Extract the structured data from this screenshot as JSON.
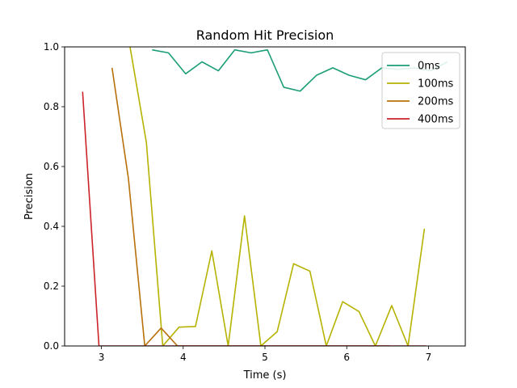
{
  "chart_data": {
    "type": "line",
    "title": "Random Hit Precision",
    "xlabel": "Time (s)",
    "ylabel": "Precision",
    "xlim": [
      2.55,
      7.45
    ],
    "ylim": [
      0,
      1
    ],
    "xticks": [
      3,
      4,
      5,
      6,
      7
    ],
    "yticks": [
      0.0,
      0.2,
      0.4,
      0.6,
      0.8,
      1.0
    ],
    "xtick_labels": [
      "3",
      "4",
      "5",
      "6",
      "7"
    ],
    "ytick_labels": [
      "0.0",
      "0.2",
      "0.4",
      "0.6",
      "0.8",
      "1.0"
    ],
    "grid": false,
    "legend_position": "top-right",
    "series": [
      {
        "name": "0ms",
        "color": "#1b9e77",
        "x": [
          3.62,
          3.82,
          4.03,
          4.23,
          4.43,
          4.63,
          4.83,
          5.03,
          5.23,
          5.43,
          5.63,
          5.83,
          6.03,
          6.23,
          6.43,
          6.63,
          6.83,
          7.03,
          7.23
        ],
        "y": [
          0.99,
          0.98,
          0.91,
          0.95,
          0.92,
          0.99,
          0.98,
          0.99,
          0.865,
          0.852,
          0.905,
          0.93,
          0.905,
          0.89,
          0.93,
          0.925,
          0.93,
          0.92,
          0.95
        ]
      },
      {
        "name": "100ms",
        "color": "#b5b300",
        "x": [
          3.35,
          3.55,
          3.75,
          3.95,
          4.15,
          4.35,
          4.55,
          4.75,
          4.95,
          5.15,
          5.35,
          5.55,
          5.75,
          5.95,
          6.15,
          6.35,
          6.55,
          6.75,
          6.95
        ],
        "y": [
          1.0,
          0.68,
          0.0,
          0.063,
          0.065,
          0.318,
          0.0,
          0.435,
          0.0,
          0.048,
          0.275,
          0.25,
          0.0,
          0.148,
          0.115,
          0.0,
          0.135,
          0.0,
          0.392
        ]
      },
      {
        "name": "200ms",
        "color": "#b8700a",
        "x": [
          3.13,
          3.33,
          3.53,
          3.73,
          3.93,
          4.13,
          4.33,
          4.53,
          4.73,
          4.93,
          5.13,
          5.33,
          5.53,
          5.73,
          5.93,
          6.13,
          6.33,
          6.53
        ],
        "y": [
          0.93,
          0.56,
          0.0,
          0.06,
          0.0,
          0.0,
          0.0,
          0.0,
          0.0,
          0.0,
          0.0,
          0.0,
          0.0,
          0.0,
          0.0,
          0.0,
          0.0,
          0.0
        ]
      },
      {
        "name": "400ms",
        "color": "#cc2229",
        "x": [
          2.77,
          2.97,
          3.17,
          3.37,
          3.57,
          3.77,
          3.97,
          4.17,
          4.37,
          4.57,
          4.77,
          4.97,
          5.17,
          5.37,
          5.57,
          5.77,
          5.97,
          6.17,
          6.37,
          6.57,
          6.77,
          6.97
        ],
        "y": [
          0.85,
          0.0,
          0.0,
          0.0,
          0.0,
          0.0,
          0.0,
          0.0,
          0.0,
          0.0,
          0.0,
          0.0,
          0.0,
          0.0,
          0.0,
          0.0,
          0.0,
          0.0,
          0.0,
          0.0,
          0.0,
          0.0
        ]
      }
    ]
  }
}
